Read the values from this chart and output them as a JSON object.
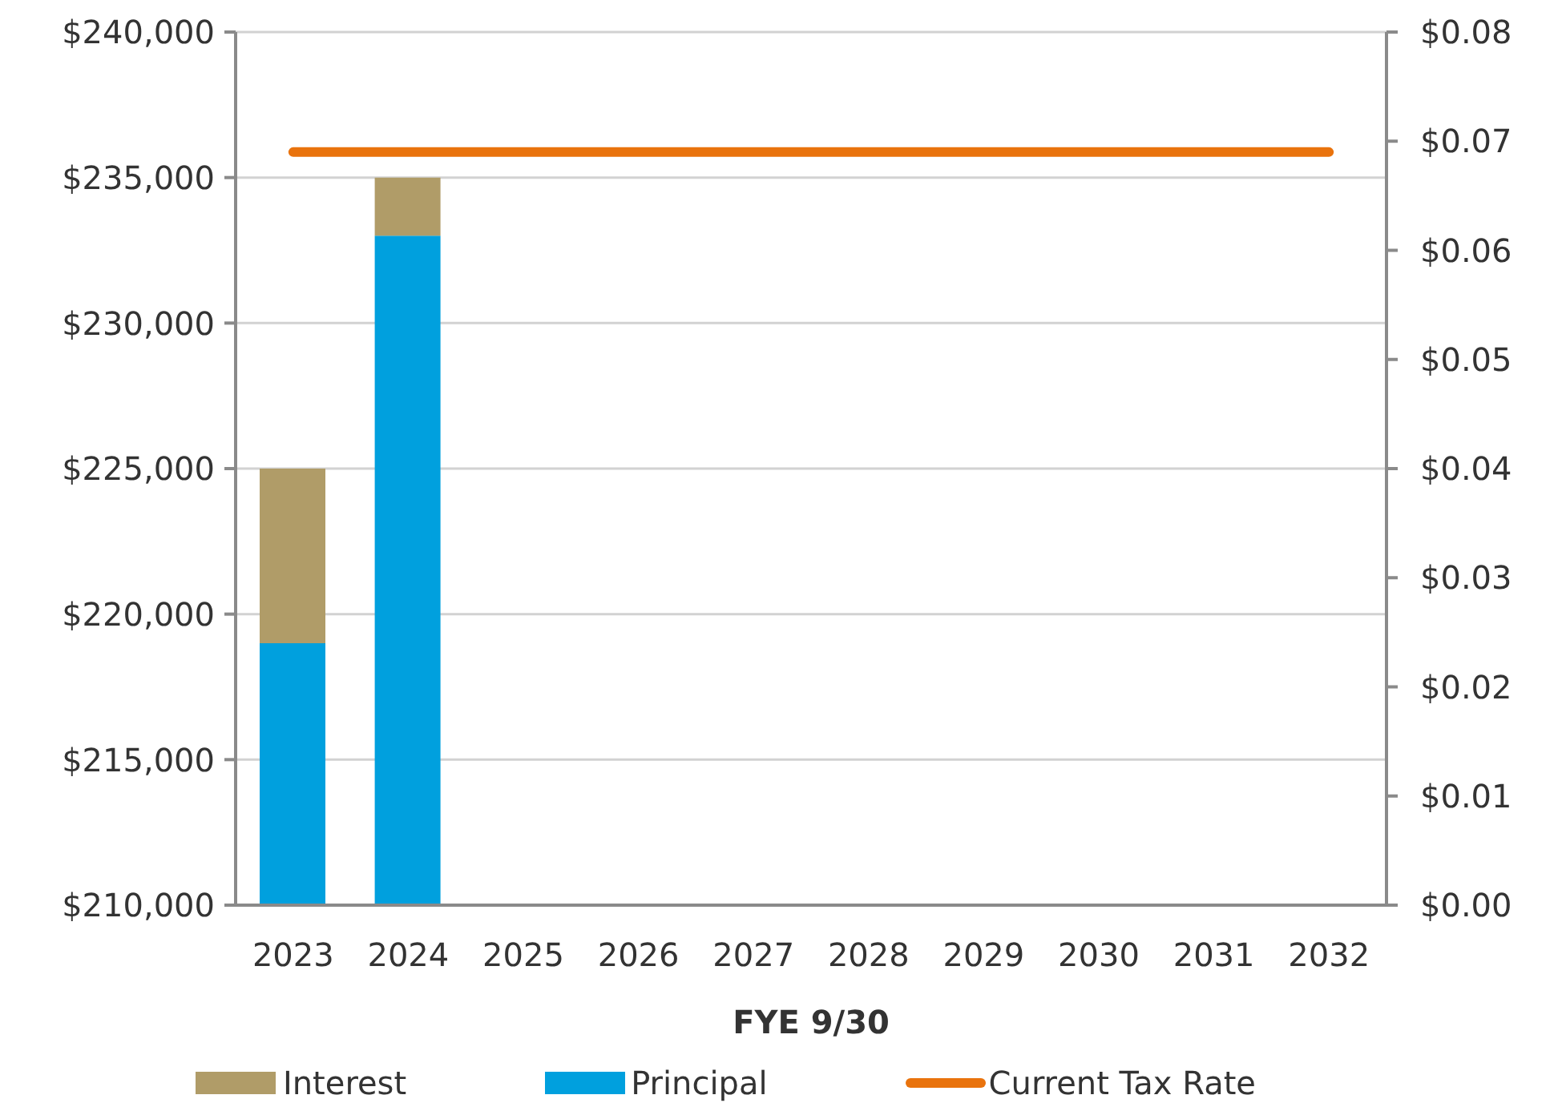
{
  "chart_data": {
    "type": "bar",
    "xlabel": "FYE 9/30",
    "categories": [
      "2023",
      "2024",
      "2025",
      "2026",
      "2027",
      "2028",
      "2029",
      "2030",
      "2031",
      "2032"
    ],
    "series": [
      {
        "name": "Principal",
        "color": "#00a0de",
        "values": [
          219000,
          233000,
          null,
          null,
          null,
          null,
          null,
          null,
          null,
          null
        ]
      },
      {
        "name": "Interest",
        "color": "#b09c68",
        "values": [
          6000,
          2000,
          null,
          null,
          null,
          null,
          null,
          null,
          null,
          null
        ],
        "base": [
          219000,
          233000,
          null,
          null,
          null,
          null,
          null,
          null,
          null,
          null
        ]
      },
      {
        "name": "Current Tax Rate",
        "type": "line",
        "axis": "y2",
        "color": "#e9730d",
        "values": [
          0.069,
          0.069,
          0.069,
          0.069,
          0.069,
          0.069,
          0.069,
          0.069,
          0.069,
          0.069
        ]
      }
    ],
    "ylim": [
      210000,
      240000
    ],
    "yticks": [
      {
        "value": 210000,
        "label": "$210,000"
      },
      {
        "value": 215000,
        "label": "$215,000"
      },
      {
        "value": 220000,
        "label": "$220,000"
      },
      {
        "value": 225000,
        "label": "$225,000"
      },
      {
        "value": 230000,
        "label": "$230,000"
      },
      {
        "value": 235000,
        "label": "$235,000"
      },
      {
        "value": 240000,
        "label": "$240,000"
      }
    ],
    "y2lim": [
      0,
      0.08
    ],
    "y2ticks": [
      {
        "value": 0,
        "label": "$0.00"
      },
      {
        "value": 0.01,
        "label": "$0.01"
      },
      {
        "value": 0.02,
        "label": "$0.02"
      },
      {
        "value": 0.03,
        "label": "$0.03"
      },
      {
        "value": 0.04,
        "label": "$0.04"
      },
      {
        "value": 0.05,
        "label": "$0.05"
      },
      {
        "value": 0.06,
        "label": "$0.06"
      },
      {
        "value": 0.07,
        "label": "$0.07"
      },
      {
        "value": 0.08,
        "label": "$0.08"
      }
    ],
    "grid": "y",
    "legend": "bottom"
  }
}
